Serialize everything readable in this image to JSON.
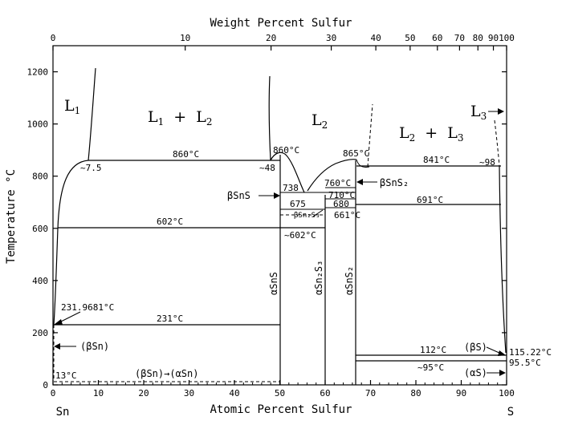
{
  "axes": {
    "top_title": "Weight Percent Sulfur",
    "bottom_title": "Atomic Percent Sulfur",
    "left_title": "Temperature °C",
    "top_ticks": [
      "0",
      "10",
      "20",
      "30",
      "40",
      "50",
      "60",
      "70",
      "80",
      "90",
      "100"
    ],
    "bottom_ticks": [
      "0",
      "10",
      "20",
      "30",
      "40",
      "50",
      "60",
      "70",
      "80",
      "90",
      "100"
    ],
    "left_ticks": [
      "0",
      "200",
      "400",
      "600",
      "800",
      "1000",
      "1200"
    ],
    "left_element": "Sn",
    "right_element": "S"
  },
  "regions": {
    "l1": "L",
    "l1_sub": "1",
    "l1l2_a": "L",
    "l1l2_a_sub": "1",
    "l1l2_plus": "+",
    "l1l2_b": "L",
    "l1l2_b_sub": "2",
    "l2": "L",
    "l2_sub": "2",
    "l2l3_a": "L",
    "l2l3_a_sub": "2",
    "l2l3_plus": "+",
    "l2l3_b": "L",
    "l2l3_b_sub": "3",
    "l3": "L",
    "l3_sub": "3"
  },
  "temperatures": {
    "t860a": "860°C",
    "t860b": "860°C",
    "t865": "865°C",
    "t841": "841°C",
    "t602": "602°C",
    "t602b": "~602°C",
    "t738": "738",
    "t760": "760°C",
    "t710": "710°C",
    "t680": "680",
    "t675": "675",
    "t691": "691°C",
    "t661": "661°C",
    "t231": "231°C",
    "t231sn": "231.9681°C",
    "t13": "13°C",
    "t112": "112°C",
    "t95": "~95°C",
    "t115": "115.22°C",
    "t955": "95.5°C",
    "c75": "~7.5",
    "c48": "~48",
    "c98": "~98"
  },
  "phases": {
    "bsns": "βSnS",
    "bsns2": "βSnS₂",
    "bsn2s3": "βSn₂S₃",
    "asns": "αSnS",
    "asn2s3": "αSn₂S₃",
    "asns2": "αSnS₂",
    "bsn": "(βSn)",
    "asn_trans": "(βSn)→(αSn)",
    "bs": "(βS)",
    "as": "(αS)"
  },
  "colors": {
    "line": "#000000",
    "background": "#ffffff"
  }
}
